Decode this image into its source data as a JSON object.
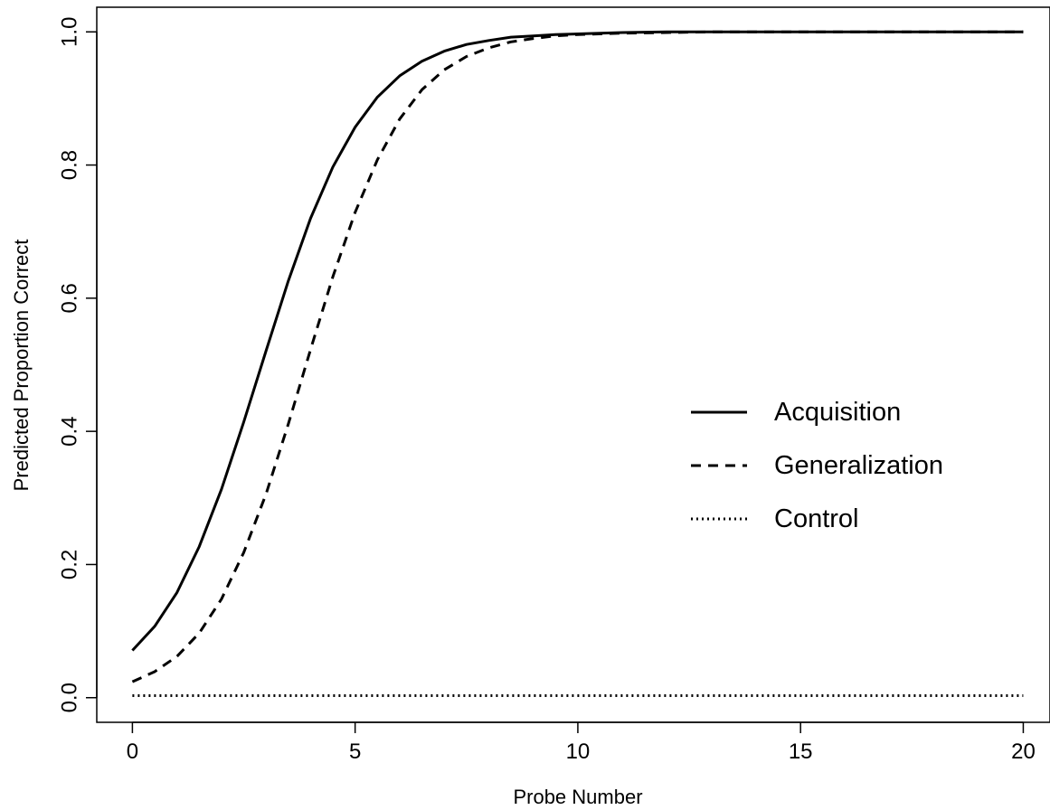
{
  "chart_data": {
    "type": "line",
    "title": "",
    "xlabel": "Probe Number",
    "ylabel": "Predicted Proportion Correct",
    "xlim": [
      -0.8,
      20.6
    ],
    "ylim": [
      -0.037,
      1.037
    ],
    "x_ticks": [
      0,
      5,
      10,
      15,
      20
    ],
    "y_ticks": [
      0.0,
      0.2,
      0.4,
      0.6,
      0.8,
      1.0
    ],
    "x_tick_labels": [
      "0",
      "5",
      "10",
      "15",
      "20"
    ],
    "y_tick_labels": [
      "0.0",
      "0.2",
      "0.4",
      "0.6",
      "0.8",
      "1.0"
    ],
    "grid": false,
    "legend": {
      "position": "right-center"
    },
    "x": [
      0,
      0.5,
      1,
      1.5,
      2,
      2.5,
      3,
      3.5,
      4,
      4.5,
      5,
      5.5,
      6,
      6.5,
      7,
      7.5,
      8,
      8.5,
      9,
      9.5,
      10,
      11,
      12,
      13,
      14,
      15,
      16,
      17,
      18,
      19,
      20
    ],
    "series": [
      {
        "name": "Acquisition",
        "style": "solid",
        "values": [
          0.071,
          0.107,
          0.158,
          0.227,
          0.313,
          0.414,
          0.521,
          0.626,
          0.72,
          0.797,
          0.857,
          0.902,
          0.934,
          0.956,
          0.971,
          0.981,
          0.987,
          0.992,
          0.994,
          0.996,
          0.997,
          0.999,
          1.0,
          1.0,
          1.0,
          1.0,
          1.0,
          1.0,
          1.0,
          1.0,
          1.0
        ]
      },
      {
        "name": "Generalization",
        "style": "dashed",
        "values": [
          0.024,
          0.039,
          0.062,
          0.097,
          0.148,
          0.218,
          0.306,
          0.411,
          0.523,
          0.632,
          0.729,
          0.808,
          0.869,
          0.913,
          0.943,
          0.963,
          0.976,
          0.985,
          0.99,
          0.994,
          0.996,
          0.998,
          0.999,
          1.0,
          1.0,
          1.0,
          1.0,
          1.0,
          1.0,
          1.0,
          1.0
        ]
      },
      {
        "name": "Control",
        "style": "dotted",
        "values": [
          0.003,
          0.003,
          0.003,
          0.003,
          0.003,
          0.003,
          0.003,
          0.003,
          0.003,
          0.003,
          0.003,
          0.003,
          0.003,
          0.003,
          0.003,
          0.003,
          0.003,
          0.003,
          0.003,
          0.003,
          0.003,
          0.003,
          0.003,
          0.003,
          0.003,
          0.003,
          0.003,
          0.003,
          0.003,
          0.003,
          0.003
        ]
      }
    ]
  }
}
